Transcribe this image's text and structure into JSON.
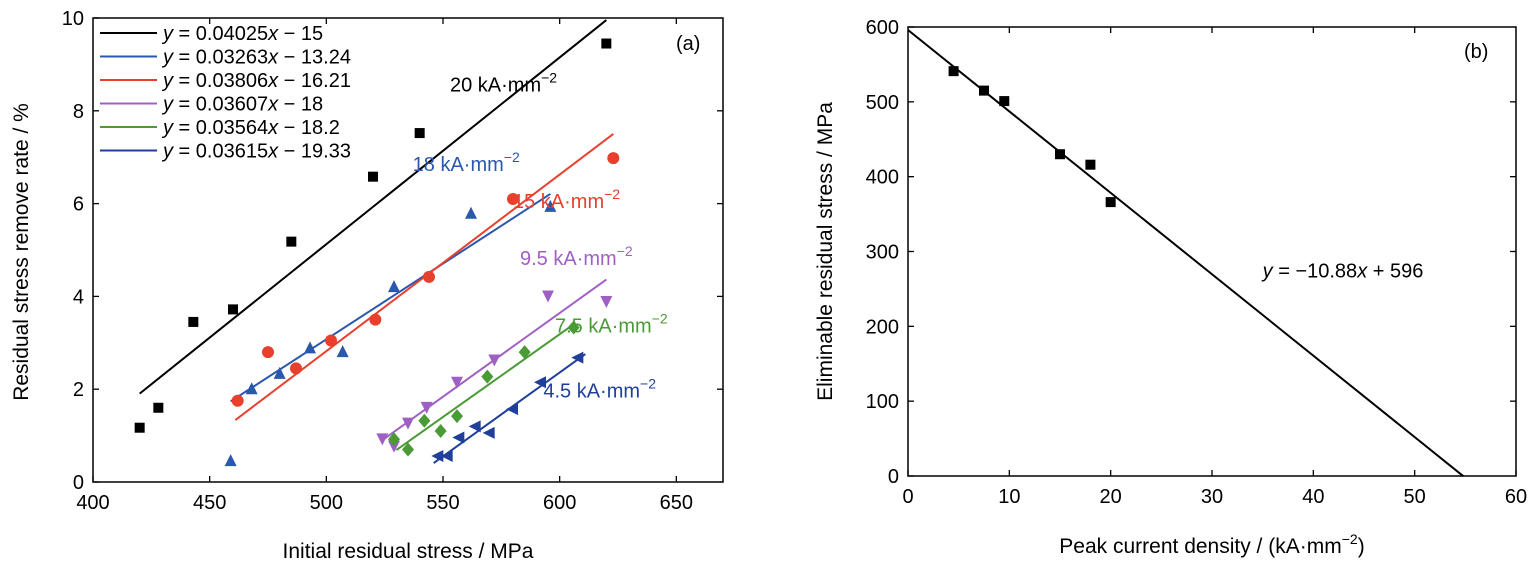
{
  "chart_data": [
    {
      "type": "scatter",
      "panel_label": "(a)",
      "xlabel": "Initial residual stress / MPa",
      "ylabel": "Residual stress remove rate / %",
      "xlim": [
        400,
        670
      ],
      "ylim": [
        0,
        10
      ],
      "xticks": [
        400,
        450,
        500,
        550,
        600,
        650
      ],
      "yticks": [
        0,
        2,
        4,
        6,
        8,
        10
      ],
      "grid": false,
      "legend_position": "top-left",
      "series": [
        {
          "name": "20 kA·mm⁻²",
          "legend": "y = 0.04025x − 15",
          "label": "20 kA·mm",
          "label_sup": "−2",
          "color": "#000000",
          "line_color": "#000000",
          "marker": "square",
          "slope": 0.04025,
          "intercept": -15,
          "fit_x": [
            420,
            620
          ],
          "label_anchor": [
            553,
            8.42
          ],
          "points": [
            [
              420,
              1.17
            ],
            [
              428,
              1.6
            ],
            [
              443,
              3.45
            ],
            [
              460,
              3.72
            ],
            [
              485,
              5.18
            ],
            [
              520,
              6.58
            ],
            [
              540,
              7.52
            ],
            [
              620,
              9.45
            ]
          ]
        },
        {
          "name": "18 kA·mm⁻²",
          "legend": "y = 0.03263x − 13.24",
          "label": "18 kA·mm",
          "label_sup": "−2",
          "color": "#2a58ad",
          "line_color": "#2a58ad",
          "marker": "triangle-up",
          "slope": 0.03263,
          "intercept": -13.24,
          "fit_x": [
            459,
            596
          ],
          "label_anchor": [
            537,
            6.7
          ],
          "points": [
            [
              459,
              0.45
            ],
            [
              468,
              2.0
            ],
            [
              480,
              2.33
            ],
            [
              493,
              2.88
            ],
            [
              507,
              2.8
            ],
            [
              529,
              4.2
            ],
            [
              562,
              5.78
            ],
            [
              596,
              5.93
            ]
          ]
        },
        {
          "name": "15 kA·mm⁻²",
          "legend": "y = 0.03806x − 16.21",
          "label": "15 kA·mm",
          "label_sup": "−2",
          "color": "#e8402d",
          "line_color": "#e8402d",
          "marker": "circle",
          "slope": 0.03806,
          "intercept": -16.21,
          "fit_x": [
            461,
            623
          ],
          "label_anchor": [
            580,
            5.9
          ],
          "points": [
            [
              462,
              1.75
            ],
            [
              475,
              2.8
            ],
            [
              487,
              2.45
            ],
            [
              502,
              3.05
            ],
            [
              521,
              3.5
            ],
            [
              544,
              4.42
            ],
            [
              580,
              6.1
            ],
            [
              623,
              6.98
            ]
          ]
        },
        {
          "name": "9.5 kA·mm⁻²",
          "legend": "y = 0.03607x − 18",
          "label": "9.5 kA·mm",
          "label_sup": "−2",
          "color": "#9f60c4",
          "line_color": "#9f60c4",
          "marker": "triangle-down",
          "slope": 0.03607,
          "intercept": -18,
          "fit_x": [
            525,
            620
          ],
          "label_anchor": [
            583,
            4.68
          ],
          "points": [
            [
              524,
              0.94
            ],
            [
              529,
              0.78
            ],
            [
              535,
              1.28
            ],
            [
              543,
              1.62
            ],
            [
              556,
              2.16
            ],
            [
              572,
              2.64
            ],
            [
              595,
              4.02
            ],
            [
              620,
              3.9
            ]
          ]
        },
        {
          "name": "7.5 kA·mm⁻²",
          "legend": "y = 0.03564x − 18.2",
          "label": "7.5 kA·mm",
          "label_sup": "−2",
          "color": "#4a9a35",
          "line_color": "#4a9a35",
          "marker": "diamond",
          "slope": 0.03564,
          "intercept": -18.2,
          "fit_x": [
            530,
            606
          ],
          "label_anchor": [
            598,
            3.22
          ],
          "points": [
            [
              529,
              0.92
            ],
            [
              535,
              0.7
            ],
            [
              542,
              1.32
            ],
            [
              549,
              1.1
            ],
            [
              556,
              1.42
            ],
            [
              569,
              2.27
            ],
            [
              585,
              2.8
            ],
            [
              606,
              3.33
            ]
          ]
        },
        {
          "name": "4.5 kA·mm⁻²",
          "legend": "y = 0.03615x − 19.33",
          "label": "4.5 kA·mm",
          "label_sup": "−2",
          "color": "#1f3f9a",
          "line_color": "#1f3f9a",
          "marker": "triangle-left",
          "slope": 0.03615,
          "intercept": -19.33,
          "fit_x": [
            546,
            611
          ],
          "label_anchor": [
            593,
            1.82
          ],
          "points": [
            [
              548,
              0.56
            ],
            [
              552,
              0.56
            ],
            [
              557,
              0.96
            ],
            [
              564,
              1.2
            ],
            [
              570,
              1.06
            ],
            [
              580,
              1.57
            ],
            [
              592,
              2.15
            ],
            [
              608,
              2.68
            ]
          ]
        }
      ]
    },
    {
      "type": "scatter",
      "panel_label": "(b)",
      "xlabel": "Peak current density / (kA·mm",
      "xlabel_sup": "−2",
      "xlabel_tail": ")",
      "ylabel": "Eliminable residual stress / MPa",
      "xlim": [
        0,
        60
      ],
      "ylim": [
        0,
        600
      ],
      "xticks": [
        0,
        10,
        20,
        30,
        40,
        50,
        60
      ],
      "yticks": [
        0,
        100,
        200,
        300,
        400,
        500,
        600
      ],
      "grid": false,
      "fit_equation": "y = −10.88x + 596",
      "fit": {
        "slope": -10.88,
        "intercept": 596,
        "x_range": [
          0,
          54.8
        ]
      },
      "equation_anchor": [
        35,
        265
      ],
      "color": "#000000",
      "marker": "square",
      "points": [
        [
          4.5,
          541
        ],
        [
          7.5,
          515
        ],
        [
          9.5,
          501
        ],
        [
          15,
          430
        ],
        [
          18,
          416
        ],
        [
          20,
          366
        ]
      ]
    }
  ]
}
